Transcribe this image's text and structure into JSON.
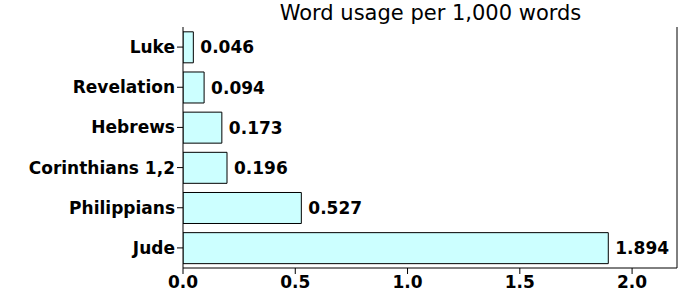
{
  "chart_data": {
    "type": "bar",
    "title": "Word usage per 1,000 words",
    "orientation": "horizontal",
    "categories": [
      "Luke",
      "Revelation",
      "Hebrews",
      "Corinthians 1,2",
      "Philippians",
      "Jude"
    ],
    "values": [
      0.046,
      0.094,
      0.173,
      0.196,
      0.527,
      1.894
    ],
    "color": "#ccffff",
    "xlim": [
      0,
      2.2
    ],
    "xticks": [
      {
        "value": 0,
        "label": "0.0"
      },
      0.5,
      {
        "value": 1,
        "label": "1.0"
      },
      1.5,
      {
        "value": 2,
        "label": "2.0"
      }
    ],
    "grid": false,
    "data_labels": true
  }
}
